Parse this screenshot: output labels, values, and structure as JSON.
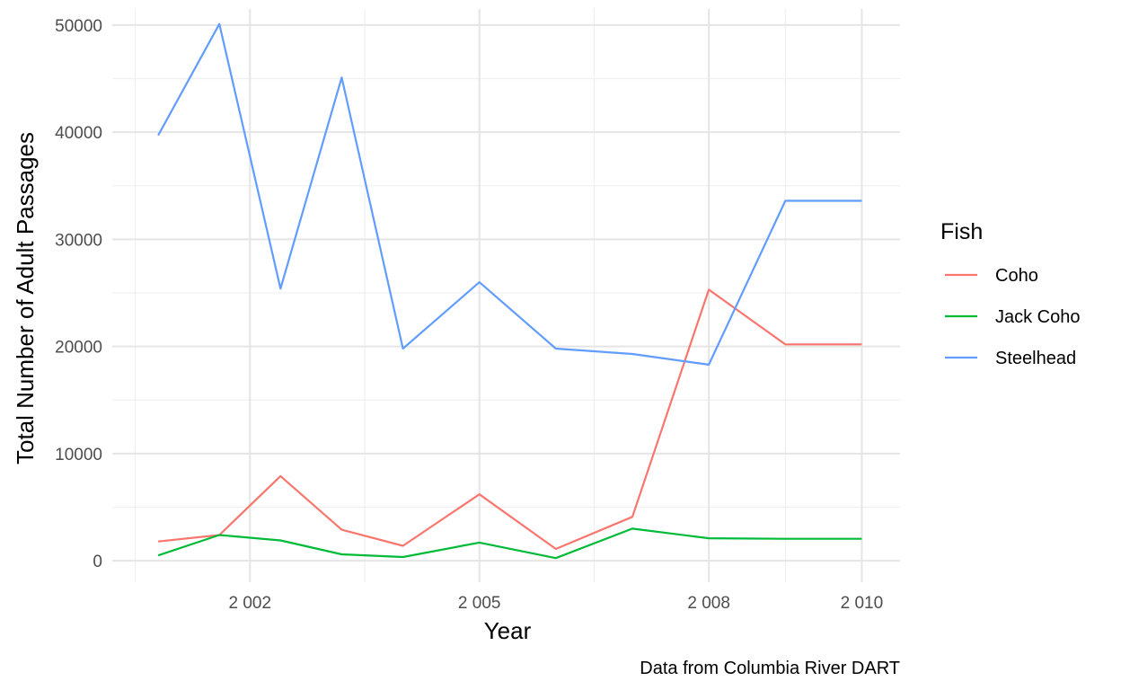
{
  "chart_data": {
    "type": "line",
    "xlabel": "Year",
    "ylabel": "Total Number of Adult Passages",
    "caption": "Data from Columbia River DART",
    "x_ticks": [
      2002,
      2005,
      2008,
      2010
    ],
    "x_tick_labels": [
      "2 002",
      "2 005",
      "2 008",
      "2 010"
    ],
    "y_ticks": [
      0,
      10000,
      20000,
      30000,
      40000,
      50000
    ],
    "y_tick_labels": [
      "0",
      "10000",
      "20000",
      "30000",
      "40000",
      "50000"
    ],
    "xlim": [
      2000.2,
      2010.5
    ],
    "ylim": [
      -2000,
      51500
    ],
    "grid": true,
    "legend": {
      "title": "Fish",
      "position": "right"
    },
    "x": [
      2000.8,
      2001.6,
      2002.4,
      2003.2,
      2004.0,
      2004.8,
      2005.6,
      2006.4,
      2007.2,
      2008.0,
      2010.0
    ],
    "series": [
      {
        "name": "Coho",
        "color": "#F8766D",
        "x": [
          2000.8,
          2001.6,
          2002.4,
          2003.2,
          2004.0,
          2005.0,
          2006.0,
          2007.0,
          2008.0,
          2009.0,
          2010.0
        ],
        "values": [
          1800,
          2400,
          7900,
          2900,
          1400,
          6200,
          1100,
          4100,
          25300,
          20200,
          20200
        ]
      },
      {
        "name": "Jack Coho",
        "color": "#00BA38",
        "x": [
          2000.8,
          2001.6,
          2002.4,
          2003.2,
          2004.0,
          2005.0,
          2006.0,
          2007.0,
          2008.0,
          2009.0,
          2010.0
        ],
        "values": [
          500,
          2400,
          1900,
          600,
          350,
          1700,
          250,
          3000,
          2100,
          2050,
          2050
        ]
      },
      {
        "name": "Steelhead",
        "color": "#619CFF",
        "x": [
          2000.8,
          2001.6,
          2002.4,
          2003.2,
          2004.0,
          2005.0,
          2006.0,
          2007.0,
          2008.0,
          2009.0,
          2010.0
        ],
        "values": [
          39700,
          50100,
          25400,
          45100,
          19800,
          26000,
          19800,
          19300,
          18300,
          33600,
          33600
        ]
      }
    ]
  }
}
